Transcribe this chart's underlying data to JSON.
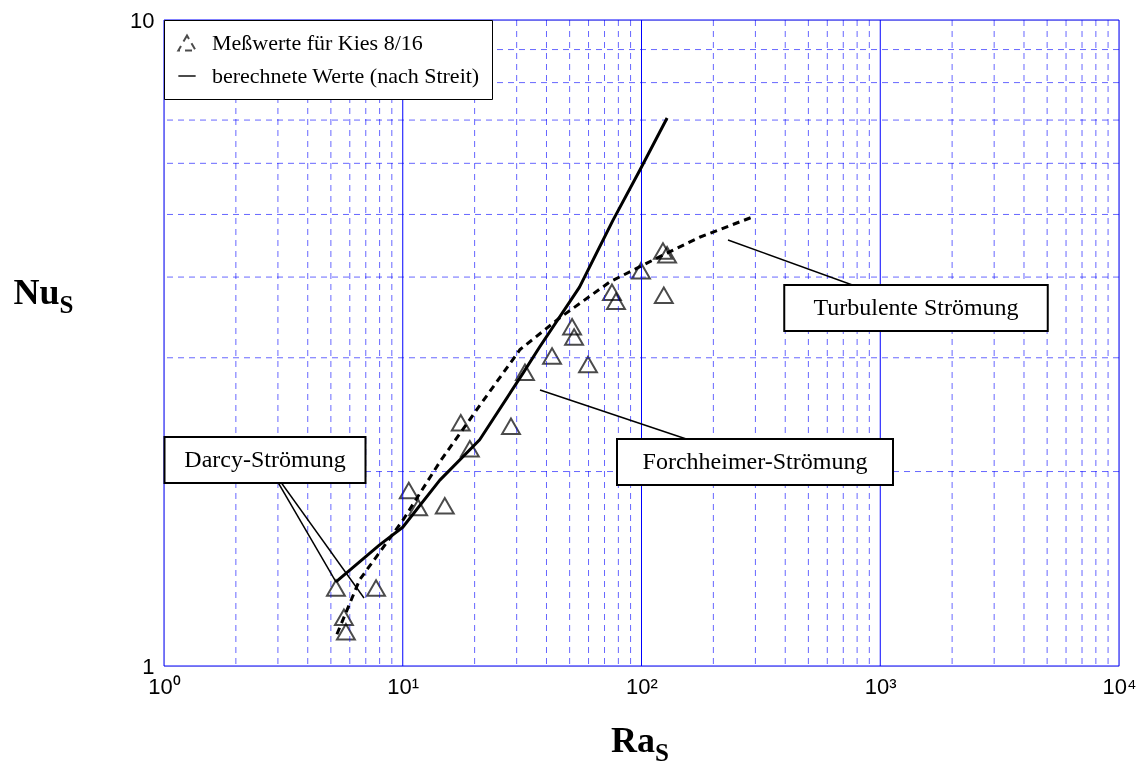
{
  "chart_data": {
    "type": "line",
    "xlabel": "Ra$_{S}$",
    "ylabel": "Nu$_{S}$",
    "log": "xy",
    "grid": true,
    "legend": "top left",
    "xlim": [
      1,
      10000
    ],
    "ylim": [
      1,
      10
    ],
    "xticks": [
      {
        "value": 1,
        "label": "10⁰"
      },
      {
        "value": 2,
        "label": null
      },
      {
        "value": 3,
        "label": null
      },
      {
        "value": 4,
        "label": null
      },
      {
        "value": 5,
        "label": null
      },
      {
        "value": 6,
        "label": null
      },
      {
        "value": 7,
        "label": null
      },
      {
        "value": 8,
        "label": null
      },
      {
        "value": 9,
        "label": null
      },
      {
        "value": 10,
        "label": "10¹"
      },
      {
        "value": 20,
        "label": null
      },
      {
        "value": 30,
        "label": null
      },
      {
        "value": 40,
        "label": null
      },
      {
        "value": 50,
        "label": null
      },
      {
        "value": 60,
        "label": null
      },
      {
        "value": 70,
        "label": null
      },
      {
        "value": 80,
        "label": null
      },
      {
        "value": 90,
        "label": null
      },
      {
        "value": 100,
        "label": "10²"
      },
      {
        "value": 200,
        "label": null
      },
      {
        "value": 300,
        "label": null
      },
      {
        "value": 400,
        "label": null
      },
      {
        "value": 500,
        "label": null
      },
      {
        "value": 600,
        "label": null
      },
      {
        "value": 700,
        "label": null
      },
      {
        "value": 800,
        "label": null
      },
      {
        "value": 900,
        "label": null
      },
      {
        "value": 1000,
        "label": "10³"
      },
      {
        "value": 2000,
        "label": null
      },
      {
        "value": 3000,
        "label": null
      },
      {
        "value": 4000,
        "label": null
      },
      {
        "value": 5000,
        "label": null
      },
      {
        "value": 6000,
        "label": null
      },
      {
        "value": 7000,
        "label": null
      },
      {
        "value": 8000,
        "label": null
      },
      {
        "value": 9000,
        "label": null
      },
      {
        "value": 10000,
        "label": "10⁴"
      }
    ],
    "yticks": [
      1,
      {
        "value": 2,
        "label": null
      },
      {
        "value": 3,
        "label": null
      },
      {
        "value": 4,
        "label": null
      },
      {
        "value": 5,
        "label": null
      },
      {
        "value": 6,
        "label": null
      },
      {
        "value": 7,
        "label": null
      },
      {
        "value": 8,
        "label": null
      },
      {
        "value": 9,
        "label": null
      },
      10
    ],
    "series": [
      {
        "name": "Meßwerte für Kies 8/16",
        "type": "scatter",
        "marker": "triangle",
        "color": "#000000",
        "x": [
          5.25,
          5.67,
          5.78,
          7.73,
          10.6,
          11.6,
          15.0,
          17.5,
          19.1,
          28.4,
          32.5,
          42.2,
          51.2,
          52.2,
          59.7,
          75.2,
          78.2,
          99.5,
          124,
          123,
          128
        ],
        "values": [
          1.32,
          1.19,
          1.13,
          1.32,
          1.87,
          1.76,
          1.77,
          2.38,
          2.17,
          2.35,
          2.85,
          3.02,
          3.35,
          3.23,
          2.93,
          3.79,
          3.67,
          4.09,
          3.75,
          4.39,
          4.33
        ]
      },
      {
        "line_style": "dashed",
        "color": "#000000",
        "x": [
          5.3,
          6.6,
          10,
          14.3,
          21,
          31,
          45.5,
          73.6,
          119,
          175,
          298
        ],
        "values": [
          1.12,
          1.36,
          1.68,
          2.07,
          2.53,
          3.09,
          3.46,
          3.93,
          4.3,
          4.61,
          4.97
        ]
      },
      {
        "name": "berechnete Werte (nach Streit)",
        "line_style": "solid",
        "color": "#000000",
        "x": [
          5.25,
          8.0,
          10,
          14.3,
          21,
          31.9,
          37.5,
          55,
          76,
          98.5,
          128
        ],
        "values": [
          1.35,
          1.54,
          1.64,
          1.94,
          2.24,
          2.84,
          3.12,
          3.86,
          4.9,
          5.86,
          7.05
        ]
      }
    ],
    "annotations": [
      {
        "text": "Darcy-Strömung",
        "x": 5.25,
        "y": 1.35
      },
      "Forchheimer-Strömung",
      "Turbulente Strömung"
    ]
  }
}
